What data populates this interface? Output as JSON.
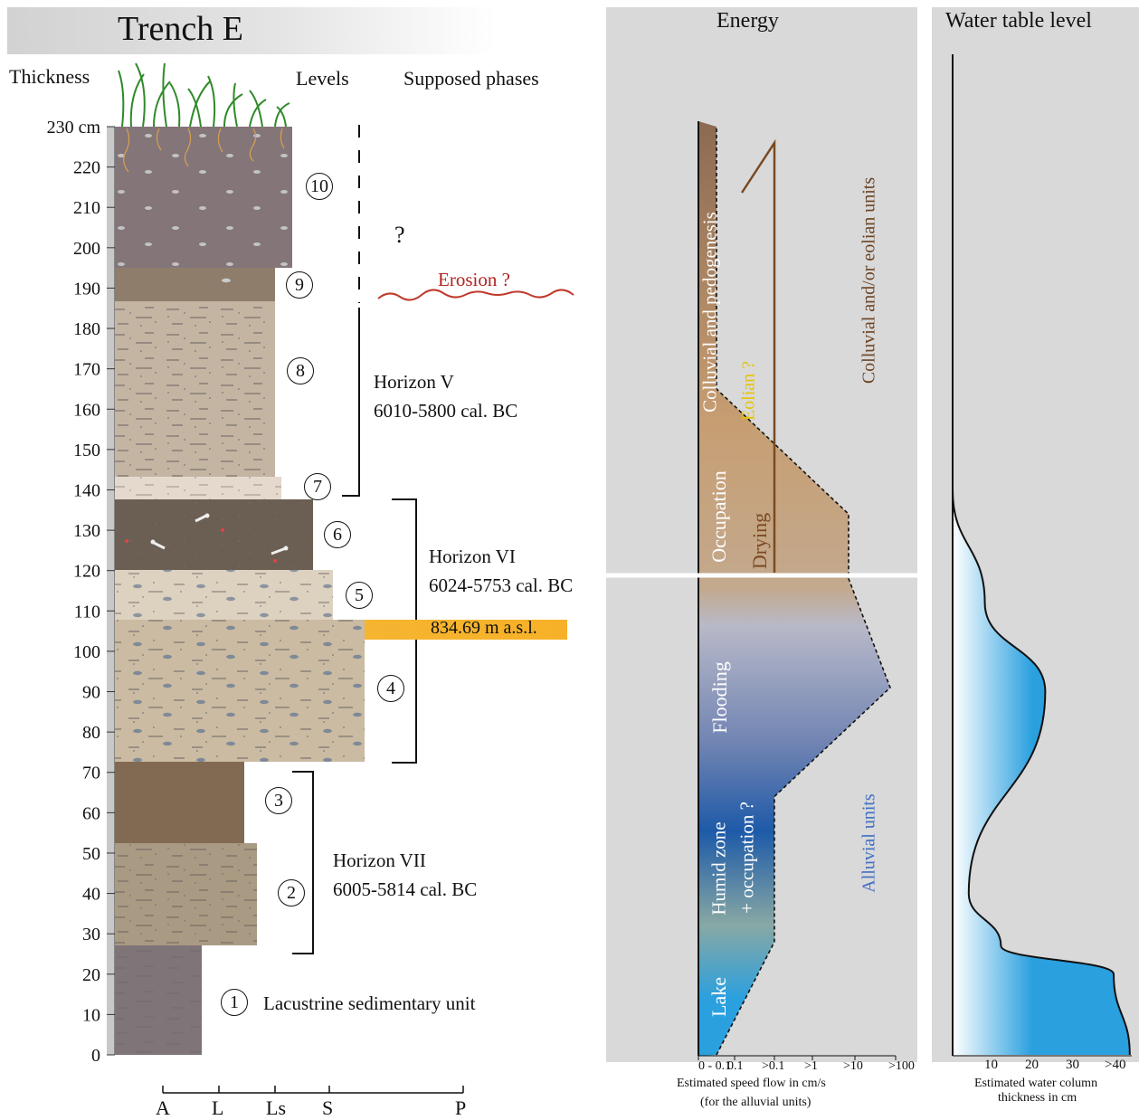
{
  "title": "Trench E",
  "headers": {
    "thickness": "Thickness",
    "levels": "Levels",
    "phases": "Supposed phases",
    "energy": "Energy",
    "water": "Water table level"
  },
  "depth_ticks": [
    "230 cm",
    "220",
    "210",
    "200",
    "190",
    "180",
    "170",
    "160",
    "150",
    "140",
    "130",
    "120",
    "110",
    "100",
    "90",
    "80",
    "70",
    "60",
    "50",
    "40",
    "30",
    "20",
    "10",
    "0"
  ],
  "levels": [
    "1",
    "2",
    "3",
    "4",
    "5",
    "6",
    "7",
    "8",
    "9",
    "10"
  ],
  "texture_axis": [
    "A",
    "L",
    "Ls",
    "S",
    "P"
  ],
  "horizons": {
    "v": {
      "name": "Horizon V",
      "dates": "6010-5800 cal. BC"
    },
    "vi": {
      "name": "Horizon VI",
      "dates": "6024-5753 cal. BC"
    },
    "vii": {
      "name": "Horizon VII",
      "dates": "6005-5814 cal. BC"
    }
  },
  "annotations": {
    "question": "?",
    "erosion": "Erosion ?",
    "altitude": "834.69 m a.s.l.",
    "lacustrine": "Lacustrine sedimentary unit"
  },
  "energy": {
    "phases": [
      "Lake",
      "Humid zone",
      "+ occupation ?",
      "Flooding",
      "Occupation",
      "Colluvial and pedogenesis",
      "Eolian ?",
      "Drying"
    ],
    "unit_labels": [
      "Colluvial and/or eolian units",
      "Alluvial units"
    ],
    "x_ticks": [
      "0 - 0.1",
      "0.1",
      ">0.1",
      ">1",
      ">10",
      ">100"
    ],
    "x_caption": [
      "Estimated speed flow in cm/s",
      "(for the alluvial units)"
    ],
    "profile": [
      {
        "depth_cm": 0,
        "class": "0.1"
      },
      {
        "depth_cm": 28,
        "class": ">0.1"
      },
      {
        "depth_cm": 42,
        "class": ">0.1"
      },
      {
        "depth_cm": 64,
        "class": ">0.1"
      },
      {
        "depth_cm": 91,
        "class": ">100"
      },
      {
        "depth_cm": 118,
        "class": ">10"
      },
      {
        "depth_cm": 134,
        "class": ">10"
      },
      {
        "depth_cm": 165,
        "class": "0.1"
      },
      {
        "depth_cm": 230,
        "class": "0.1"
      }
    ]
  },
  "water_table": {
    "x_ticks": [
      "10",
      "20",
      "30",
      ">40"
    ],
    "x_caption": [
      "Estimated water column",
      "thickness in cm"
    ],
    "profile": [
      {
        "depth_cm": 0,
        "thickness_cm": 44
      },
      {
        "depth_cm": 20,
        "thickness_cm": 40
      },
      {
        "depth_cm": 27,
        "thickness_cm": 12
      },
      {
        "depth_cm": 40,
        "thickness_cm": 4
      },
      {
        "depth_cm": 90,
        "thickness_cm": 23
      },
      {
        "depth_cm": 112,
        "thickness_cm": 8
      },
      {
        "depth_cm": 140,
        "thickness_cm": 0
      }
    ]
  },
  "colors": {
    "erosion": "#b22222",
    "altitude_band": "#f5b531",
    "alluvial": "#3f6fc4",
    "eolian": "#e6c400",
    "colluvial_text": "#6b4423",
    "drying": "#7a4a22",
    "water": "#2aa0df"
  }
}
